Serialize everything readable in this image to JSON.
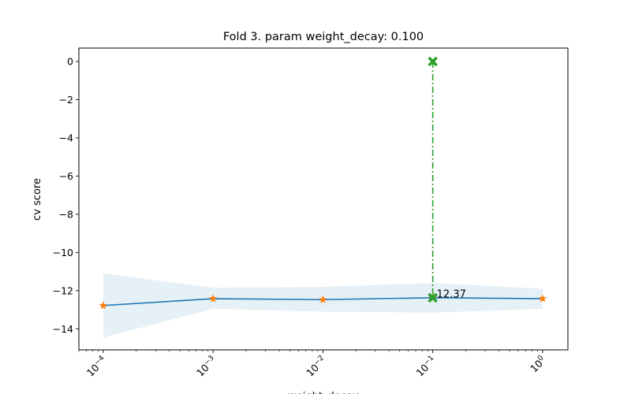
{
  "chart_data": {
    "type": "line",
    "title": "Fold 3. param weight_decay: 0.100",
    "xlabel": "weight_decay",
    "ylabel": "cv score",
    "xscale": "log",
    "xlim": [
      6e-05,
      1.7
    ],
    "ylim": [
      -15.1,
      0.7
    ],
    "x_ticks": [
      {
        "value": 0.0001,
        "base": "10",
        "exp": "−4"
      },
      {
        "value": 0.001,
        "base": "10",
        "exp": "−3"
      },
      {
        "value": 0.01,
        "base": "10",
        "exp": "−2"
      },
      {
        "value": 0.1,
        "base": "10",
        "exp": "−1"
      },
      {
        "value": 1,
        "base": "10",
        "exp": "0"
      }
    ],
    "y_ticks": [
      "0",
      "−2",
      "−4",
      "−6",
      "−8",
      "−10",
      "−12",
      "−14"
    ],
    "y_tick_values": [
      0,
      -2,
      -4,
      -6,
      -8,
      -10,
      -12,
      -14
    ],
    "series": [
      {
        "x": [
          0.0001,
          0.001,
          0.01,
          0.1,
          1
        ],
        "y": [
          -12.78,
          -12.42,
          -12.47,
          -12.37,
          -12.42
        ],
        "upper": [
          -11.1,
          -11.85,
          -11.8,
          -11.6,
          -11.9
        ],
        "lower": [
          -14.45,
          -12.95,
          -13.1,
          -13.15,
          -12.95
        ],
        "line_color": "#1f77b4",
        "band_color": "#1f77b4",
        "marker_color": "#ff7f0e"
      }
    ],
    "best": {
      "x": 0.1,
      "y": -12.37,
      "y_top": 0,
      "label": "12.37",
      "color": "#2ca02c"
    },
    "grid": false,
    "legend": "none"
  }
}
